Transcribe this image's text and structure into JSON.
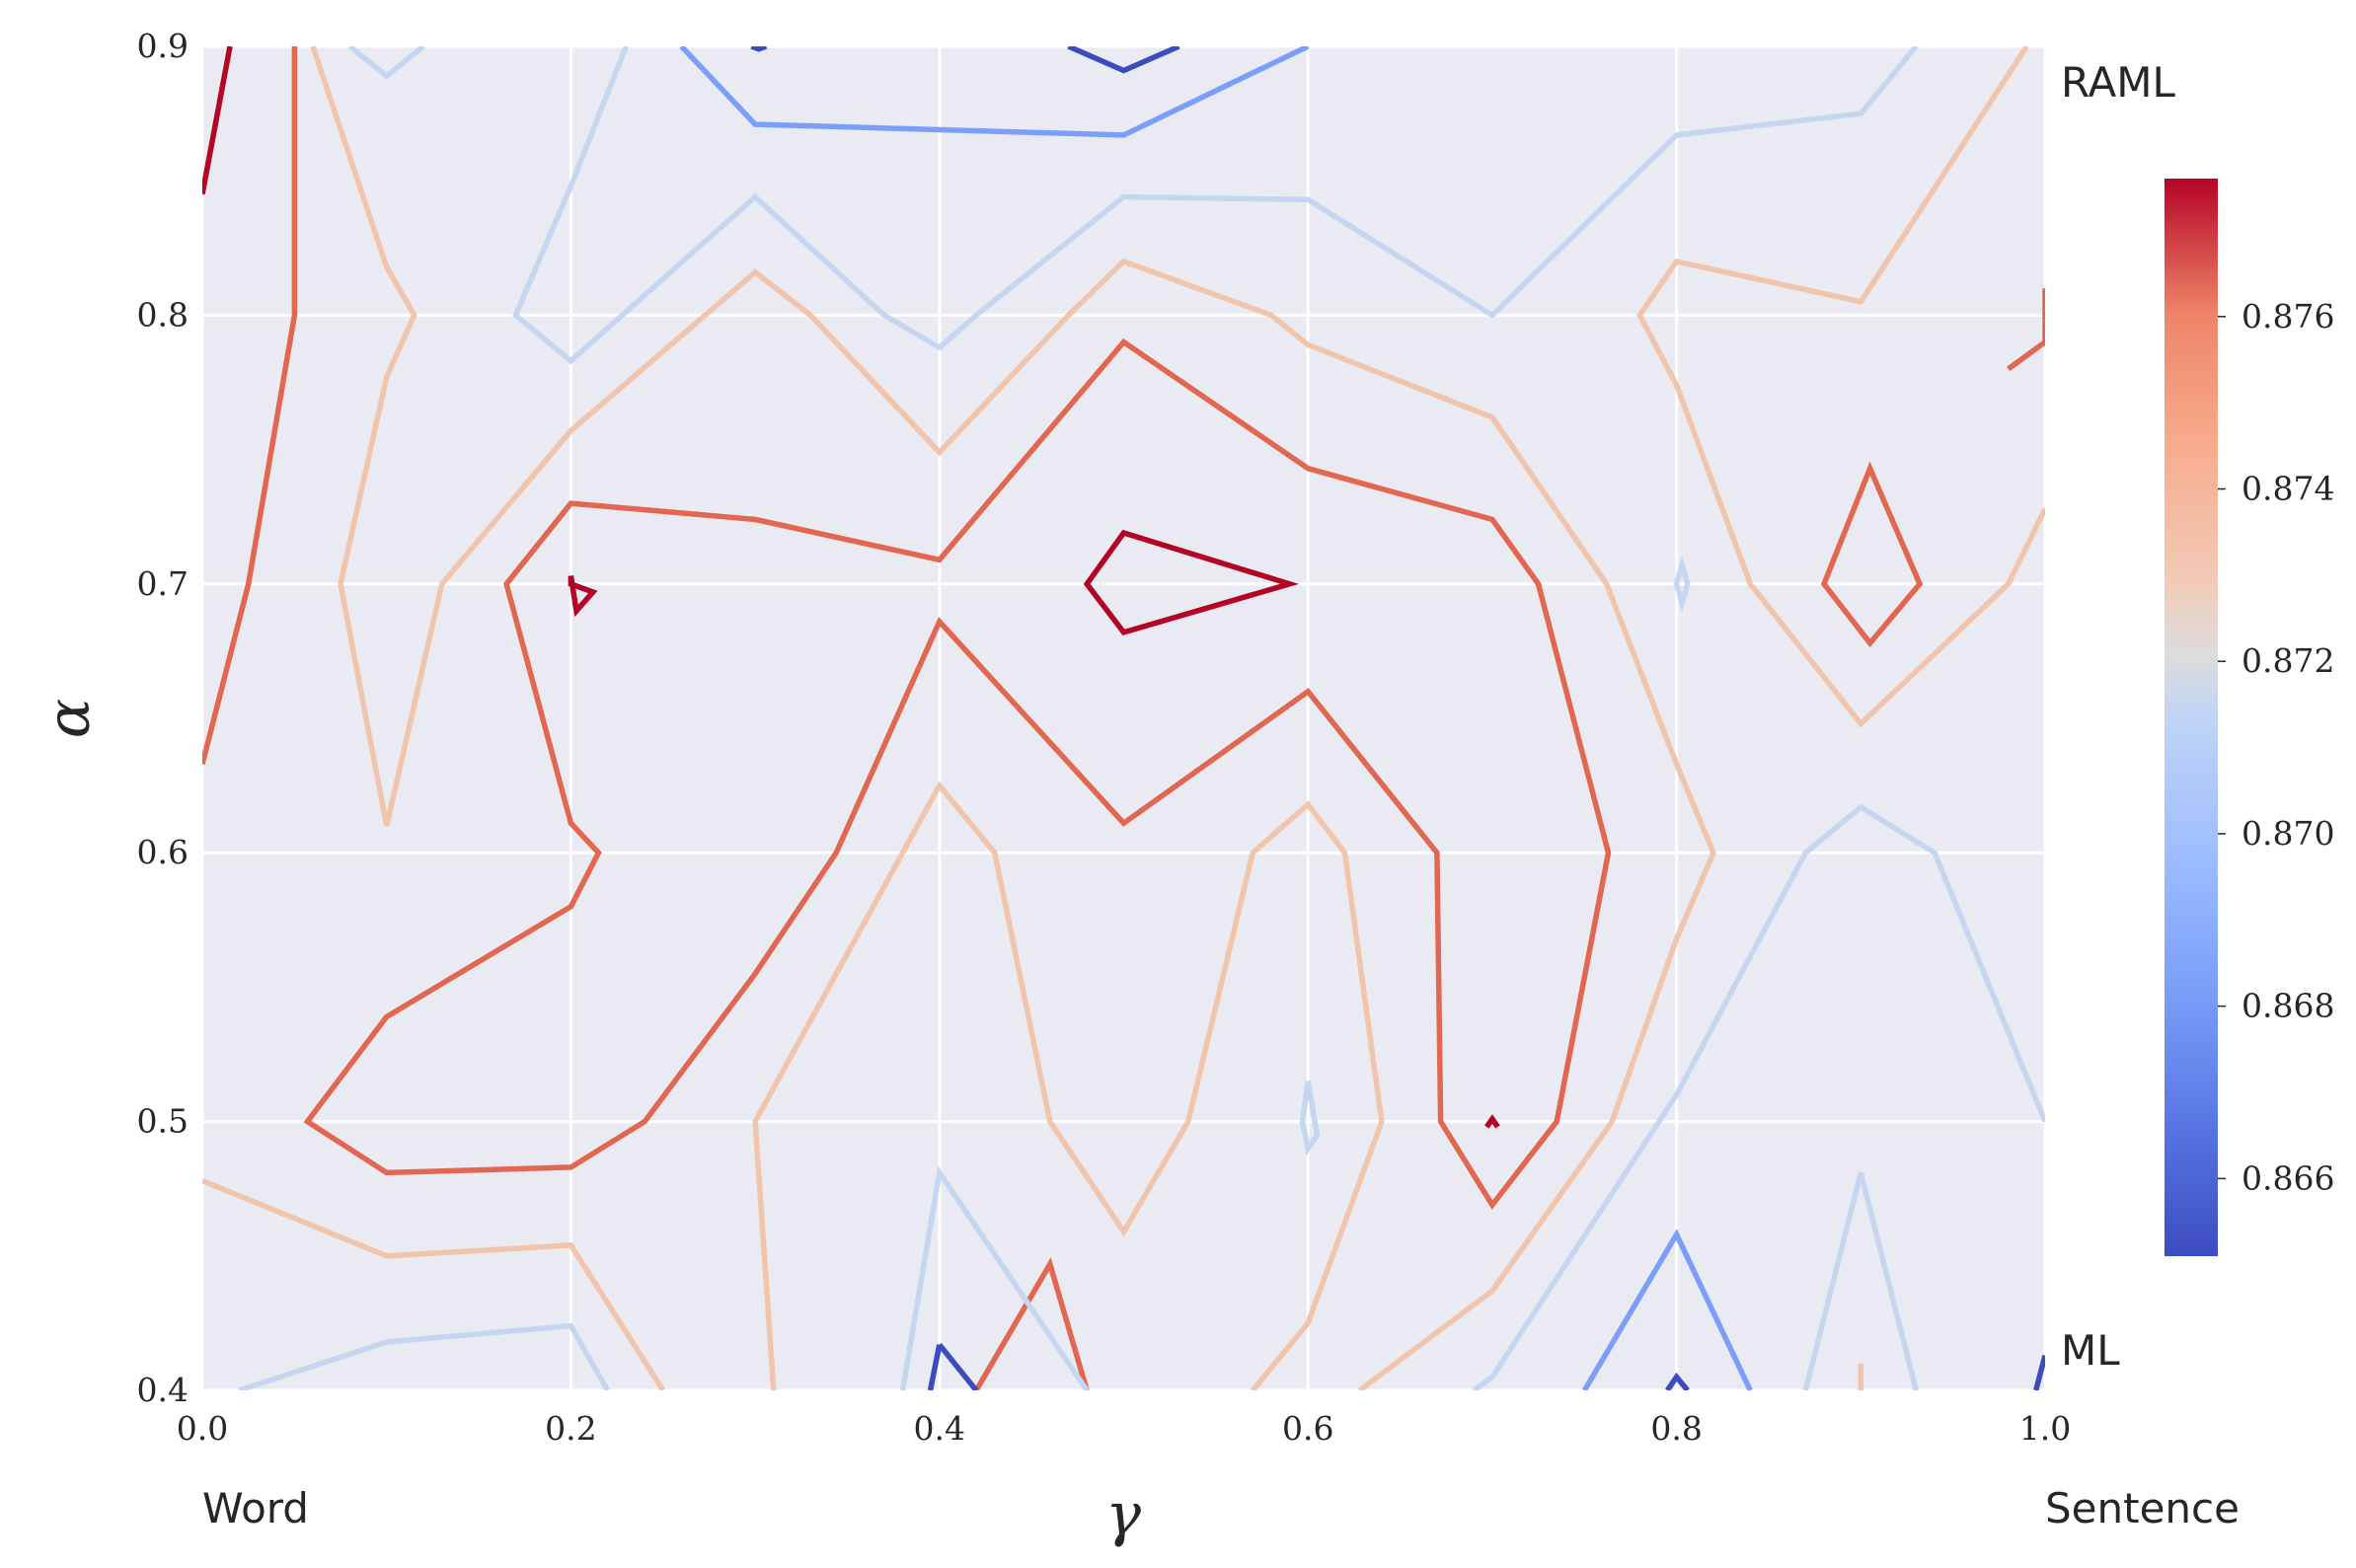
{
  "chart_data": {
    "type": "contour",
    "title": "",
    "xlabel": "γ",
    "ylabel": "α",
    "xlim": [
      0.0,
      1.0
    ],
    "ylim": [
      0.4,
      0.9
    ],
    "xticks": [
      "0.0",
      "0.2",
      "0.4",
      "0.6",
      "0.8",
      "1.0"
    ],
    "yticks": [
      "0.4",
      "0.5",
      "0.6",
      "0.7",
      "0.8",
      "0.9"
    ],
    "grid": true,
    "colormap": "coolwarm",
    "colorbar": {
      "range": [
        0.8651,
        0.8776
      ],
      "ticks": [
        "0.866",
        "0.868",
        "0.870",
        "0.872",
        "0.874",
        "0.876"
      ],
      "placement": "right"
    },
    "corner_labels": {
      "x_left": "Word",
      "x_right": "Sentence",
      "y_top": "RAML",
      "y_bottom": "ML"
    },
    "contours": [
      {
        "level": 0.8776,
        "color": "#b40426",
        "closed": false,
        "points": [
          [
            0.0,
            0.845
          ],
          [
            0.015,
            0.9
          ]
        ]
      },
      {
        "level": 0.8776,
        "color": "#b40426",
        "closed": true,
        "points": [
          [
            0.2,
            0.7
          ],
          [
            0.212,
            0.697
          ],
          [
            0.203,
            0.69
          ],
          [
            0.2,
            0.703
          ]
        ]
      },
      {
        "level": 0.8776,
        "color": "#b40426",
        "closed": true,
        "points": [
          [
            0.48,
            0.7
          ],
          [
            0.5,
            0.719
          ],
          [
            0.59,
            0.7
          ],
          [
            0.5,
            0.682
          ]
        ]
      },
      {
        "level": 0.8776,
        "color": "#b40426",
        "closed": false,
        "points": [
          [
            0.697,
            0.498
          ],
          [
            0.7,
            0.501
          ],
          [
            0.703,
            0.498
          ]
        ]
      },
      {
        "level": 0.876,
        "color": "#e16751",
        "closed": false,
        "points": [
          [
            0.0,
            0.633
          ],
          [
            0.025,
            0.7
          ],
          [
            0.05,
            0.8
          ],
          [
            0.05,
            0.9
          ]
        ]
      },
      {
        "level": 0.876,
        "color": "#e16751",
        "closed": false,
        "points": [
          [
            0.42,
            0.4
          ],
          [
            0.46,
            0.447
          ],
          [
            0.48,
            0.4
          ]
        ]
      },
      {
        "level": 0.876,
        "color": "#e16751",
        "closed": false,
        "points": [
          [
            0.98,
            0.78
          ],
          [
            1.0,
            0.79
          ],
          [
            1.0,
            0.81
          ]
        ]
      },
      {
        "level": 0.876,
        "color": "#e16751",
        "closed": true,
        "points": [
          [
            0.88,
            0.7
          ],
          [
            0.905,
            0.743
          ],
          [
            0.932,
            0.7
          ],
          [
            0.905,
            0.678
          ]
        ]
      },
      {
        "level": 0.876,
        "color": "#e16751",
        "closed": true,
        "points": [
          [
            0.2,
            0.73
          ],
          [
            0.3,
            0.724
          ],
          [
            0.4,
            0.709
          ],
          [
            0.5,
            0.79
          ],
          [
            0.6,
            0.743
          ],
          [
            0.7,
            0.724
          ],
          [
            0.725,
            0.7
          ],
          [
            0.763,
            0.6
          ],
          [
            0.735,
            0.5
          ],
          [
            0.7,
            0.469
          ],
          [
            0.672,
            0.5
          ],
          [
            0.67,
            0.6
          ],
          [
            0.6,
            0.66
          ],
          [
            0.5,
            0.611
          ],
          [
            0.4,
            0.686
          ],
          [
            0.344,
            0.6
          ],
          [
            0.3,
            0.555
          ],
          [
            0.24,
            0.5
          ],
          [
            0.2,
            0.483
          ],
          [
            0.1,
            0.481
          ],
          [
            0.057,
            0.5
          ],
          [
            0.1,
            0.539
          ],
          [
            0.2,
            0.58
          ],
          [
            0.215,
            0.6
          ],
          [
            0.2,
            0.611
          ],
          [
            0.165,
            0.7
          ]
        ]
      },
      {
        "level": 0.8728,
        "color": "#f1c4ac",
        "closed": false,
        "points": [
          [
            0.0,
            0.478
          ],
          [
            0.1,
            0.45
          ],
          [
            0.2,
            0.454
          ],
          [
            0.25,
            0.4
          ]
        ]
      },
      {
        "level": 0.8728,
        "color": "#f1c4ac",
        "closed": false,
        "points": [
          [
            0.06,
            0.9
          ],
          [
            0.1,
            0.818
          ],
          [
            0.115,
            0.8
          ],
          [
            0.1,
            0.777
          ],
          [
            0.075,
            0.7
          ],
          [
            0.1,
            0.61
          ],
          [
            0.13,
            0.7
          ],
          [
            0.2,
            0.757
          ],
          [
            0.3,
            0.816
          ],
          [
            0.33,
            0.8
          ],
          [
            0.4,
            0.749
          ],
          [
            0.47,
            0.8
          ],
          [
            0.5,
            0.82
          ],
          [
            0.58,
            0.8
          ],
          [
            0.6,
            0.789
          ],
          [
            0.7,
            0.762
          ],
          [
            0.762,
            0.7
          ],
          [
            0.8,
            0.633
          ],
          [
            0.82,
            0.6
          ],
          [
            0.8,
            0.568
          ],
          [
            0.765,
            0.5
          ],
          [
            0.7,
            0.437
          ],
          [
            0.628,
            0.4
          ]
        ]
      },
      {
        "level": 0.8728,
        "color": "#f1c4ac",
        "closed": false,
        "points": [
          [
            0.31,
            0.4
          ],
          [
            0.3,
            0.5
          ],
          [
            0.38,
            0.6
          ],
          [
            0.4,
            0.625
          ],
          [
            0.43,
            0.6
          ],
          [
            0.46,
            0.5
          ],
          [
            0.5,
            0.459
          ],
          [
            0.535,
            0.5
          ],
          [
            0.57,
            0.6
          ],
          [
            0.6,
            0.618
          ],
          [
            0.62,
            0.6
          ],
          [
            0.64,
            0.5
          ],
          [
            0.6,
            0.425
          ],
          [
            0.57,
            0.4
          ]
        ]
      },
      {
        "level": 0.8728,
        "color": "#f1c4ac",
        "closed": false,
        "points": [
          [
            0.99,
            0.9
          ],
          [
            0.9,
            0.805
          ],
          [
            0.8,
            0.82
          ],
          [
            0.78,
            0.8
          ],
          [
            0.8,
            0.774
          ],
          [
            0.84,
            0.7
          ],
          [
            0.9,
            0.648
          ],
          [
            0.98,
            0.7
          ],
          [
            1.0,
            0.728
          ]
        ]
      },
      {
        "level": 0.8728,
        "color": "#f1c4ac",
        "closed": false,
        "points": [
          [
            0.9,
            0.4
          ],
          [
            0.9,
            0.41
          ],
          [
            0.9,
            0.4
          ]
        ]
      },
      {
        "level": 0.8708,
        "color": "#c6d6f1",
        "closed": false,
        "points": [
          [
            0.08,
            0.9
          ],
          [
            0.1,
            0.889
          ],
          [
            0.12,
            0.9
          ]
        ]
      },
      {
        "level": 0.8708,
        "color": "#c6d6f1",
        "closed": false,
        "points": [
          [
            0.23,
            0.9
          ],
          [
            0.2,
            0.848
          ],
          [
            0.17,
            0.8
          ],
          [
            0.2,
            0.783
          ],
          [
            0.3,
            0.844
          ],
          [
            0.37,
            0.8
          ],
          [
            0.4,
            0.788
          ],
          [
            0.42,
            0.8
          ],
          [
            0.5,
            0.844
          ],
          [
            0.6,
            0.843
          ],
          [
            0.7,
            0.8
          ],
          [
            0.8,
            0.867
          ],
          [
            0.9,
            0.875
          ],
          [
            0.93,
            0.9
          ]
        ]
      },
      {
        "level": 0.8708,
        "color": "#c6d6f1",
        "closed": false,
        "points": [
          [
            0.02,
            0.4
          ],
          [
            0.1,
            0.418
          ],
          [
            0.2,
            0.424
          ],
          [
            0.22,
            0.4
          ]
        ]
      },
      {
        "level": 0.8708,
        "color": "#c6d6f1",
        "closed": false,
        "points": [
          [
            0.38,
            0.4
          ],
          [
            0.4,
            0.481
          ],
          [
            0.48,
            0.4
          ]
        ]
      },
      {
        "level": 0.8708,
        "color": "#c6d6f1",
        "closed": false,
        "points": [
          [
            0.69,
            0.4
          ],
          [
            0.7,
            0.405
          ],
          [
            0.8,
            0.51
          ],
          [
            0.87,
            0.6
          ],
          [
            0.9,
            0.617
          ],
          [
            0.94,
            0.6
          ],
          [
            1.0,
            0.5
          ]
        ]
      },
      {
        "level": 0.8708,
        "color": "#c6d6f1",
        "closed": false,
        "points": [
          [
            0.87,
            0.4
          ],
          [
            0.9,
            0.481
          ],
          [
            0.93,
            0.4
          ]
        ]
      },
      {
        "level": 0.8708,
        "color": "#c6d6f1",
        "closed": true,
        "points": [
          [
            0.8,
            0.7
          ],
          [
            0.803,
            0.707
          ],
          [
            0.806,
            0.7
          ],
          [
            0.803,
            0.693
          ]
        ]
      },
      {
        "level": 0.8708,
        "color": "#c6d6f1",
        "closed": true,
        "points": [
          [
            0.597,
            0.5
          ],
          [
            0.6,
            0.515
          ],
          [
            0.605,
            0.495
          ],
          [
            0.6,
            0.49
          ]
        ]
      },
      {
        "level": 0.8683,
        "color": "#7b9ff9",
        "closed": false,
        "points": [
          [
            0.26,
            0.9
          ],
          [
            0.3,
            0.871
          ],
          [
            0.5,
            0.867
          ],
          [
            0.6,
            0.9
          ]
        ]
      },
      {
        "level": 0.8683,
        "color": "#7b9ff9",
        "closed": false,
        "points": [
          [
            0.75,
            0.4
          ],
          [
            0.8,
            0.458
          ],
          [
            0.84,
            0.4
          ]
        ]
      },
      {
        "level": 0.8651,
        "color": "#3b4cc0",
        "closed": false,
        "points": [
          [
            0.47,
            0.9
          ],
          [
            0.5,
            0.891
          ],
          [
            0.53,
            0.9
          ]
        ]
      },
      {
        "level": 0.8651,
        "color": "#3b4cc0",
        "closed": false,
        "points": [
          [
            0.298,
            0.9
          ],
          [
            0.302,
            0.899
          ],
          [
            0.306,
            0.9
          ]
        ]
      },
      {
        "level": 0.8651,
        "color": "#3b4cc0",
        "closed": false,
        "points": [
          [
            0.4,
            0.417
          ],
          [
            0.395,
            0.4
          ]
        ]
      },
      {
        "level": 0.8651,
        "color": "#3b4cc0",
        "closed": false,
        "points": [
          [
            0.4,
            0.417
          ],
          [
            0.42,
            0.4
          ]
        ]
      },
      {
        "level": 0.8651,
        "color": "#3b4cc0",
        "closed": false,
        "points": [
          [
            0.795,
            0.4
          ],
          [
            0.8,
            0.405
          ],
          [
            0.806,
            0.4
          ]
        ]
      },
      {
        "level": 0.8651,
        "color": "#3b4cc0",
        "closed": false,
        "points": [
          [
            1.0,
            0.413
          ],
          [
            0.995,
            0.4
          ]
        ]
      }
    ]
  }
}
